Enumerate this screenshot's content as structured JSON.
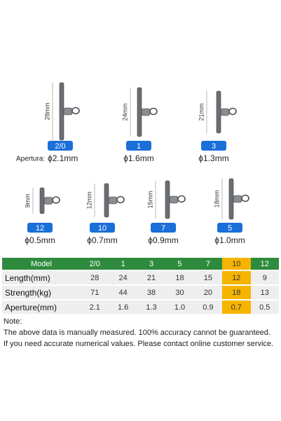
{
  "items": [
    {
      "size": "2/0",
      "length": "28mm",
      "aperture_label": "Apertura:",
      "aperture": "ϕ2.1mm"
    },
    {
      "size": "1",
      "length": "24mm",
      "aperture": "ϕ1.6mm"
    },
    {
      "size": "3",
      "length": "21mm",
      "aperture": "ϕ1.3mm"
    },
    {
      "size": "12",
      "length": "9mm",
      "aperture": "ϕ0.5mm"
    },
    {
      "size": "10",
      "length": "12mm",
      "aperture": "ϕ0.7mm"
    },
    {
      "size": "7",
      "length": "15mm",
      "aperture": "ϕ0.9mm"
    },
    {
      "size": "5",
      "length": "18mm",
      "aperture": "ϕ1.0mm"
    }
  ],
  "table": {
    "header": [
      "Model",
      "2/0",
      "1",
      "3",
      "5",
      "7",
      "10",
      "12"
    ],
    "rows": [
      [
        "Length(mm)",
        "28",
        "24",
        "21",
        "18",
        "15",
        "12",
        "9"
      ],
      [
        "Strength(kg)",
        "71",
        "44",
        "38",
        "30",
        "20",
        "18",
        "13"
      ],
      [
        "Aperture(mm)",
        "2.1",
        "1.6",
        "1.3",
        "1.0",
        "0.9",
        "0.7",
        "0.5"
      ]
    ]
  },
  "note": {
    "title": "Note:",
    "lines": [
      "The above data is manually measured. 100% accuracy cannot be guaranteed.",
      "If you need accurate numerical values. Please contact online customer service."
    ]
  }
}
